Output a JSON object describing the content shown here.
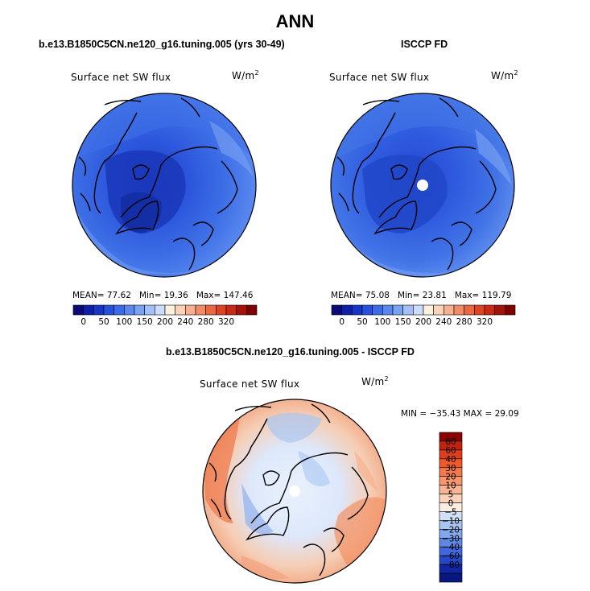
{
  "title": "ANN",
  "panels": {
    "left": {
      "title": "b.e13.B1850C5CN.ne120_g16.tuning.005 (yrs 30-49)",
      "variable": "Surface net SW flux",
      "units": "W/m",
      "units_sup": "2",
      "stats": {
        "mean_label": "MEAN=",
        "mean": "77.62",
        "min_label": "Min=",
        "min": "19.36",
        "max_label": "Max=",
        "max": "147.46"
      }
    },
    "right": {
      "title": "ISCCP FD",
      "variable": "Surface net SW flux",
      "units": "W/m",
      "units_sup": "2",
      "stats": {
        "mean_label": "MEAN=",
        "mean": "75.08",
        "min_label": "Min=",
        "min": "23.81",
        "max_label": "Max=",
        "max": "119.79"
      }
    },
    "diff": {
      "title": "b.e13.B1850C5CN.ne120_g16.tuning.005 - ISCCP FD",
      "variable": "Surface net SW flux",
      "units": "W/m",
      "units_sup": "2",
      "minmax": "MIN = −35.43 MAX =  29.09"
    }
  },
  "chart_data": [
    {
      "type": "heatmap",
      "projection": "north polar stereographic",
      "title": "b.e13.B1850C5CN.ne120_g16.tuning.005 (yrs 30-49)",
      "variable": "Surface net SW flux",
      "units": "W/m2",
      "mean": 77.62,
      "min": 19.36,
      "max": 147.46,
      "colorbar": {
        "orientation": "horizontal",
        "tick_labels": [
          "0",
          "50",
          "100",
          "150",
          "200",
          "240",
          "280",
          "320"
        ],
        "colors": [
          "#0a0a7a",
          "#0d1fa8",
          "#1636c8",
          "#2850de",
          "#3d6ae8",
          "#5a86ef",
          "#7aa2f3",
          "#a2c0f7",
          "#cddcfb",
          "#fdf1e0",
          "#fbd3b8",
          "#f7b08e",
          "#f28c66",
          "#ea6740",
          "#df4422",
          "#c92a12",
          "#a51208",
          "#800000"
        ]
      }
    },
    {
      "type": "heatmap",
      "projection": "north polar stereographic",
      "title": "ISCCP FD",
      "variable": "Surface net SW flux",
      "units": "W/m2",
      "mean": 75.08,
      "min": 23.81,
      "max": 119.79,
      "colorbar": {
        "orientation": "horizontal",
        "tick_labels": [
          "0",
          "50",
          "100",
          "150",
          "200",
          "240",
          "280",
          "320"
        ],
        "colors": [
          "#0a0a7a",
          "#0d1fa8",
          "#1636c8",
          "#2850de",
          "#3d6ae8",
          "#5a86ef",
          "#7aa2f3",
          "#a2c0f7",
          "#cddcfb",
          "#fdf1e0",
          "#fbd3b8",
          "#f7b08e",
          "#f28c66",
          "#ea6740",
          "#df4422",
          "#c92a12",
          "#a51208",
          "#800000"
        ]
      }
    },
    {
      "type": "heatmap",
      "projection": "north polar stereographic",
      "title": "b.e13.B1850C5CN.ne120_g16.tuning.005 - ISCCP FD",
      "variable": "Surface net SW flux",
      "units": "W/m2",
      "min": -35.43,
      "max": 29.09,
      "colorbar": {
        "orientation": "vertical",
        "tick_labels": [
          "80",
          "60",
          "40",
          "30",
          "20",
          "10",
          "5",
          "0",
          "−5",
          "−10",
          "−20",
          "−30",
          "−40",
          "−60",
          "−80"
        ],
        "colors": [
          "#8b0000",
          "#c1230e",
          "#df3e1c",
          "#ef5a2c",
          "#f4794a",
          "#f7976b",
          "#f9b493",
          "#fbd3bb",
          "#fdf0e3",
          "#cfe0f7",
          "#a9c6f2",
          "#84a8ec",
          "#5f88e5",
          "#3f68dc",
          "#2447c8",
          "#1126a5",
          "#0a1680"
        ]
      }
    }
  ]
}
